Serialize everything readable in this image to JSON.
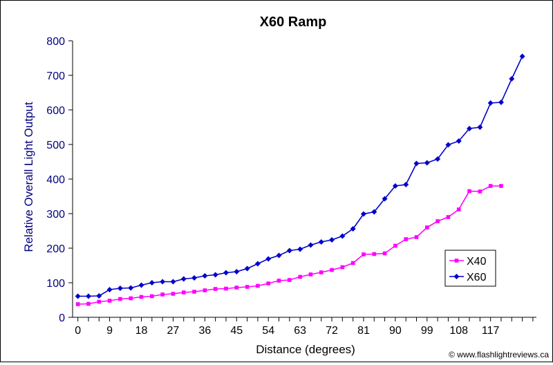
{
  "chart_data": {
    "type": "line",
    "title": "X60 Ramp",
    "xlabel": "Distance (degrees)",
    "ylabel": "Relative Overall Light Output",
    "source_note": "© www.flashlightreviews.ca",
    "x_tick_labels": [
      "0",
      "9",
      "18",
      "27",
      "36",
      "45",
      "54",
      "63",
      "72",
      "81",
      "90",
      "99",
      "108",
      "117"
    ],
    "y_tick_labels": [
      "0",
      "100",
      "200",
      "300",
      "400",
      "500",
      "600",
      "700",
      "800"
    ],
    "ylim": [
      0,
      800
    ],
    "xlim": [
      -1.5,
      130
    ],
    "legend_placement": "right",
    "grid": false,
    "plot_background": "#ffffff",
    "series": [
      {
        "name": "X40",
        "color": "#ff00ff",
        "marker": "square",
        "x": [
          0,
          3,
          6,
          9,
          12,
          15,
          18,
          21,
          24,
          27,
          30,
          33,
          36,
          39,
          42,
          45,
          48,
          51,
          54,
          57,
          60,
          63,
          66,
          69,
          72,
          75,
          78,
          81,
          84,
          87,
          90,
          93,
          96,
          99,
          102,
          105,
          108,
          111,
          114,
          117,
          120
        ],
        "y": [
          38,
          39,
          45,
          48,
          53,
          55,
          59,
          61,
          66,
          68,
          72,
          74,
          78,
          82,
          83,
          86,
          88,
          91,
          98,
          106,
          108,
          117,
          124,
          130,
          137,
          145,
          157,
          182,
          183,
          185,
          207,
          226,
          232,
          260,
          278,
          290,
          312,
          365,
          364,
          380,
          380
        ]
      },
      {
        "name": "X60",
        "color": "#0000cc",
        "marker": "diamond",
        "x": [
          0,
          3,
          6,
          9,
          12,
          15,
          18,
          21,
          24,
          27,
          30,
          33,
          36,
          39,
          42,
          45,
          48,
          51,
          54,
          57,
          60,
          63,
          66,
          69,
          72,
          75,
          78,
          81,
          84,
          87,
          90,
          93,
          96,
          99,
          102,
          105,
          108,
          111,
          114,
          117,
          120,
          123,
          126
        ],
        "y": [
          61,
          61,
          62,
          80,
          84,
          85,
          93,
          100,
          103,
          103,
          111,
          114,
          120,
          123,
          129,
          132,
          141,
          155,
          169,
          179,
          193,
          197,
          209,
          218,
          224,
          235,
          256,
          299,
          305,
          343,
          380,
          384,
          445,
          447,
          458,
          499,
          510,
          546,
          550,
          620,
          622,
          690,
          755
        ]
      }
    ]
  }
}
